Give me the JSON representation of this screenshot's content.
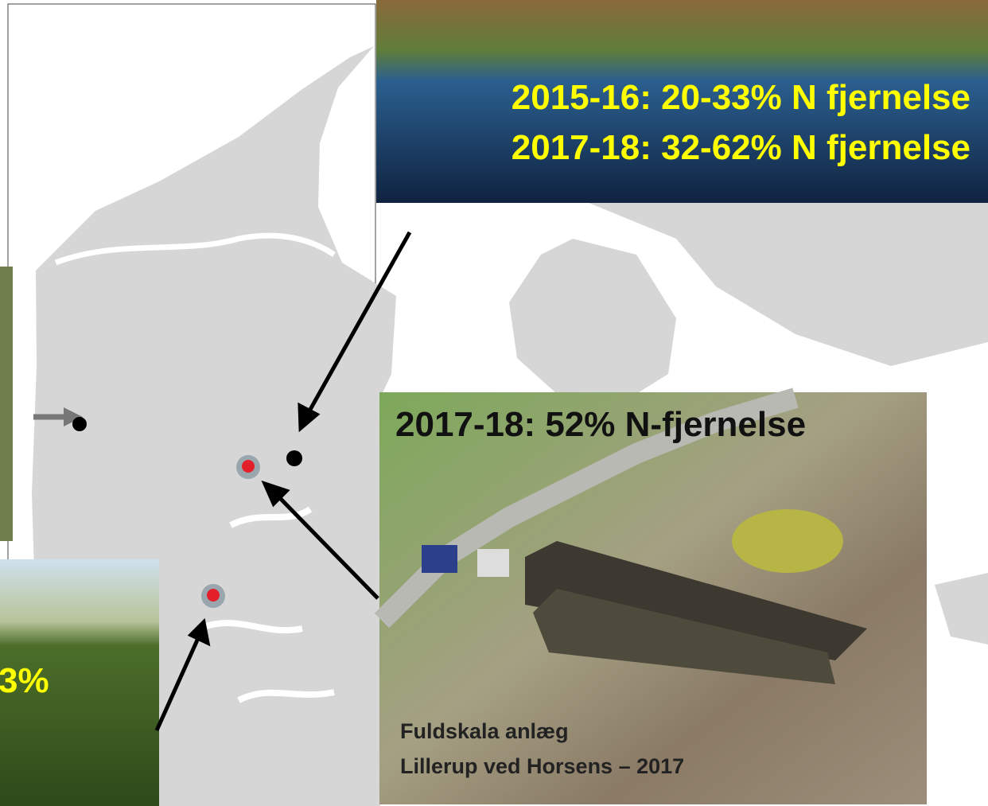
{
  "top_photo": {
    "lines": [
      "2015-16: 20-33% N fjernelse",
      "2017-18: 32-62% N fjernelse"
    ]
  },
  "right_photo": {
    "headline": "2017-18: 52% N-fjernelse",
    "caption_lines": [
      "Fuldskala anlæg",
      "Lillerup ved Horsens – 2017"
    ]
  },
  "left_photo": {
    "label": "3%"
  }
}
